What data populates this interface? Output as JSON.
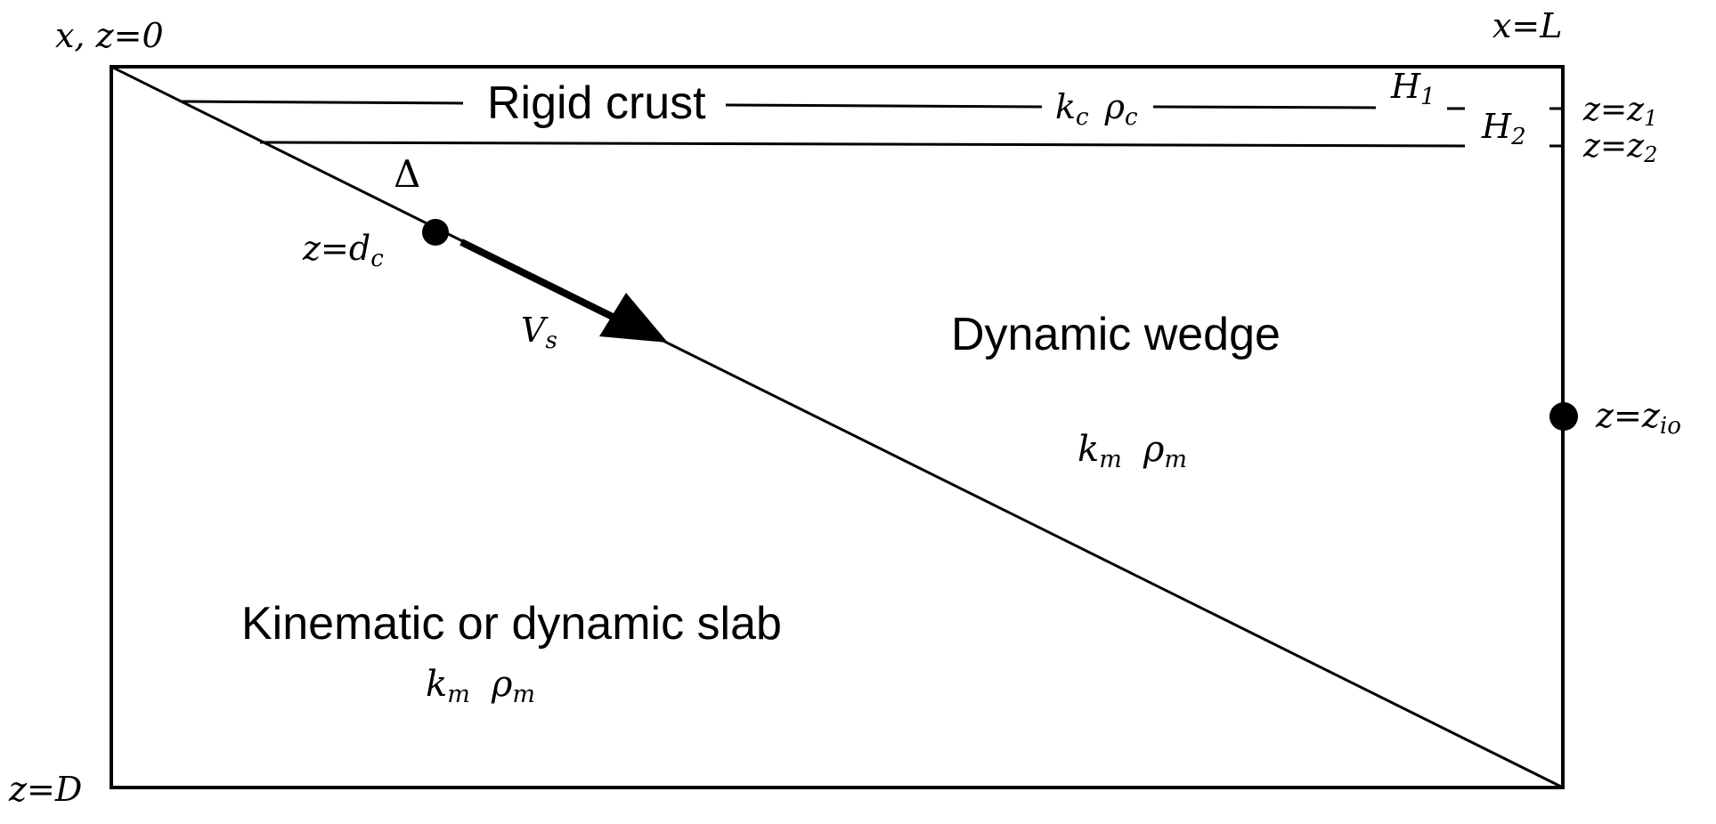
{
  "corners": {
    "origin": "x, z=0",
    "right_top": "x=L",
    "bottom_left": "z=D"
  },
  "crust": {
    "label": "Rigid crust",
    "props": "k c  ρ c",
    "props_k": "k",
    "props_k_sub": "c",
    "props_rho": "ρ",
    "props_rho_sub": "c"
  },
  "thickness": {
    "h1": "H",
    "h1_sub": "1",
    "h2": "H",
    "h2_sub": "2",
    "z1": "z=z",
    "z1_sub": "1",
    "z2": "z=z",
    "z2_sub": "2"
  },
  "slab_marker": {
    "delta": "Δ",
    "depth": "z=d",
    "depth_sub": "c",
    "velocity": "V",
    "velocity_sub": "s"
  },
  "wedge": {
    "label": "Dynamic wedge",
    "k": "k",
    "k_sub": "m",
    "rho": "ρ",
    "rho_sub": "m"
  },
  "inflow": {
    "label": "z=z",
    "label_sub": "io"
  },
  "slab": {
    "label": "Kinematic or dynamic slab",
    "k": "k",
    "k_sub": "m",
    "rho": "ρ",
    "rho_sub": "m"
  }
}
